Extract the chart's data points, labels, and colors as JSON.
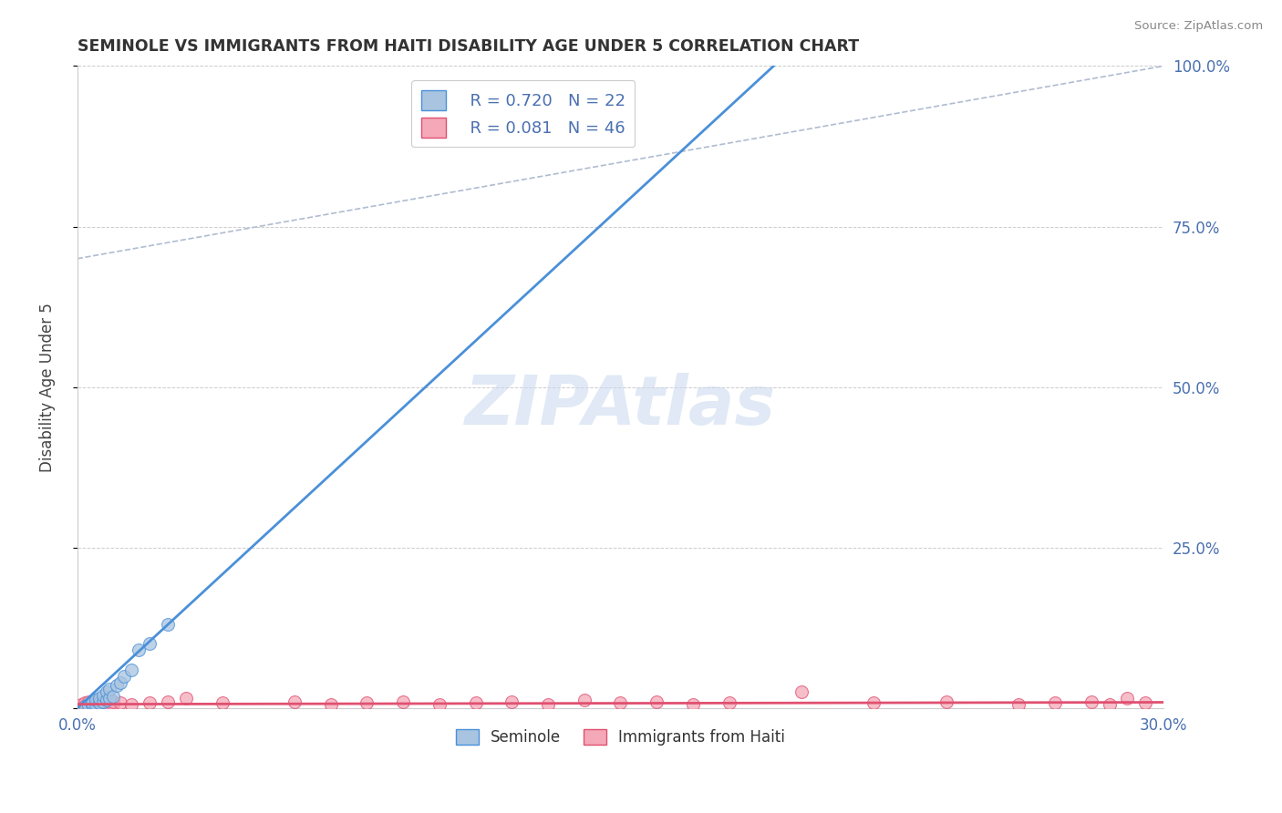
{
  "title": "SEMINOLE VS IMMIGRANTS FROM HAITI DISABILITY AGE UNDER 5 CORRELATION CHART",
  "source": "Source: ZipAtlas.com",
  "ylabel": "Disability Age Under 5",
  "xlim": [
    0.0,
    0.3
  ],
  "ylim": [
    0.0,
    1.0
  ],
  "xticks": [
    0.0,
    0.05,
    0.1,
    0.15,
    0.2,
    0.25,
    0.3
  ],
  "xtick_labels": [
    "0.0%",
    "",
    "",
    "",
    "",
    "",
    "30.0%"
  ],
  "yticks": [
    0.0,
    0.25,
    0.5,
    0.75,
    1.0
  ],
  "ytick_labels": [
    "",
    "25.0%",
    "50.0%",
    "75.0%",
    "100.0%"
  ],
  "seminole_R": 0.72,
  "seminole_N": 22,
  "haiti_R": 0.081,
  "haiti_N": 46,
  "seminole_color": "#a8c4e0",
  "haiti_color": "#f4a8b8",
  "seminole_line_color": "#4a90d9",
  "haiti_line_color": "#e05070",
  "ref_line_color": "#b0bcd0",
  "background_color": "#ffffff",
  "watermark": "ZIPAtlas",
  "watermark_color": "#c8d8ee",
  "grid_color": "#cccccc",
  "seminole_x": [
    0.002,
    0.003,
    0.004,
    0.004,
    0.005,
    0.005,
    0.006,
    0.006,
    0.007,
    0.007,
    0.008,
    0.008,
    0.009,
    0.009,
    0.01,
    0.011,
    0.012,
    0.013,
    0.015,
    0.017,
    0.02,
    0.025
  ],
  "seminole_y": [
    0.002,
    0.004,
    0.005,
    0.008,
    0.006,
    0.012,
    0.008,
    0.015,
    0.01,
    0.02,
    0.012,
    0.025,
    0.015,
    0.03,
    0.018,
    0.035,
    0.04,
    0.05,
    0.06,
    0.09,
    0.1,
    0.13
  ],
  "haiti_x": [
    0.001,
    0.002,
    0.002,
    0.003,
    0.003,
    0.004,
    0.004,
    0.005,
    0.005,
    0.006,
    0.006,
    0.007,
    0.007,
    0.008,
    0.008,
    0.009,
    0.01,
    0.01,
    0.012,
    0.015,
    0.02,
    0.025,
    0.03,
    0.04,
    0.06,
    0.07,
    0.08,
    0.09,
    0.1,
    0.11,
    0.12,
    0.13,
    0.14,
    0.15,
    0.16,
    0.17,
    0.18,
    0.2,
    0.22,
    0.24,
    0.26,
    0.27,
    0.28,
    0.285,
    0.29,
    0.295
  ],
  "haiti_y": [
    0.005,
    0.004,
    0.008,
    0.005,
    0.01,
    0.004,
    0.008,
    0.005,
    0.01,
    0.004,
    0.008,
    0.005,
    0.01,
    0.004,
    0.008,
    0.005,
    0.006,
    0.01,
    0.008,
    0.006,
    0.008,
    0.01,
    0.015,
    0.008,
    0.01,
    0.006,
    0.008,
    0.01,
    0.006,
    0.008,
    0.01,
    0.006,
    0.012,
    0.008,
    0.01,
    0.006,
    0.008,
    0.025,
    0.008,
    0.01,
    0.006,
    0.008,
    0.01,
    0.006,
    0.015,
    0.008
  ],
  "seminole_line_slope": 5.2,
  "seminole_line_intercept": 0.0,
  "haiti_line_slope": 0.01,
  "haiti_line_intercept": 0.006,
  "ref_line_x0": 0.0,
  "ref_line_y0": 0.7,
  "ref_line_x1": 0.3,
  "ref_line_y1": 1.0
}
